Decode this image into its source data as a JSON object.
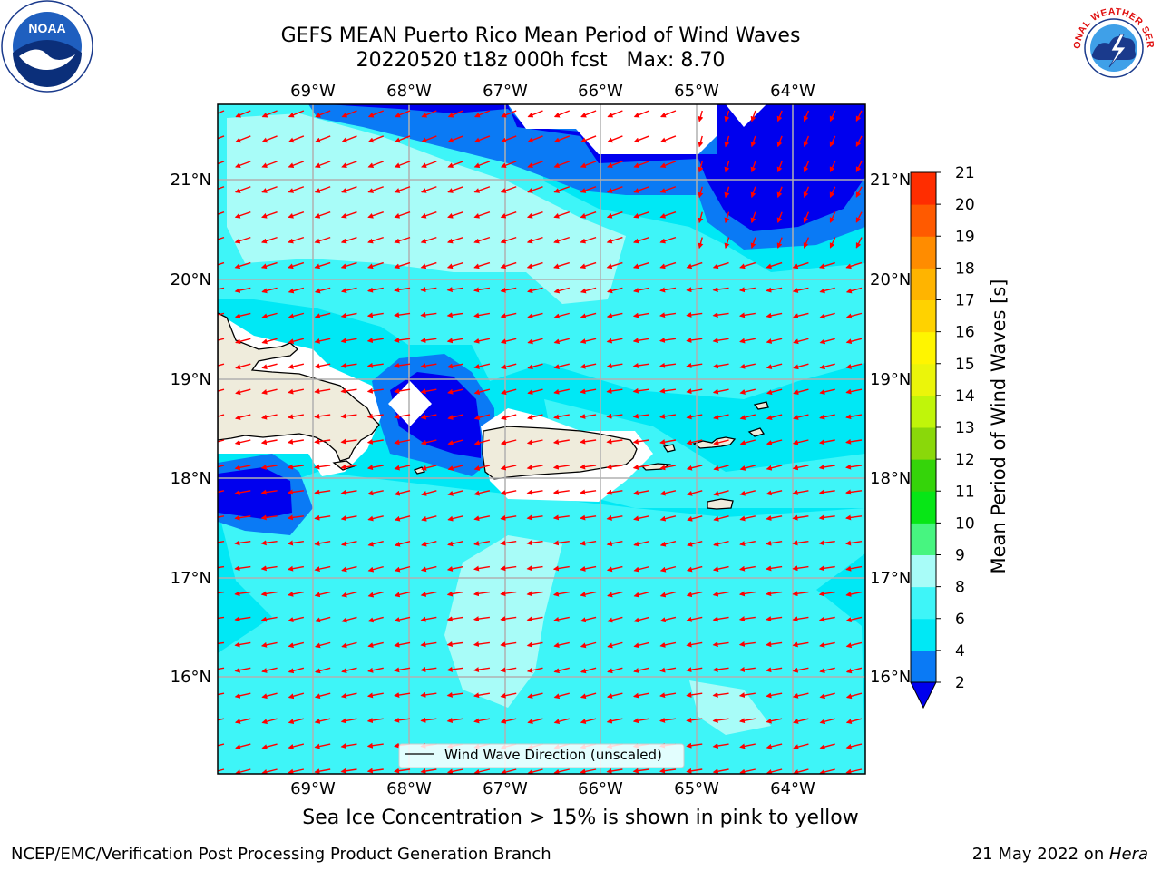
{
  "header": {
    "title_line1": "GEFS MEAN Puerto Rico Mean Period of Wind Waves",
    "title_line2": "20220520 t18z 000h fcst   Max: 8.70"
  },
  "map": {
    "lon_ticks": [
      "69°W",
      "68°W",
      "67°W",
      "66°W",
      "65°W",
      "64°W"
    ],
    "lat_ticks": [
      "21°N",
      "20°N",
      "19°N",
      "18°N",
      "17°N",
      "16°N"
    ],
    "legend_label": "Wind Wave Direction (unscaled)",
    "arrow_color": "#ff0000",
    "land_color": "#efecdc"
  },
  "colorbar": {
    "label": "Mean Period of Wind Waves [s]",
    "levels": [
      2,
      4,
      6,
      8,
      9,
      10,
      11,
      12,
      13,
      14,
      15,
      16,
      17,
      18,
      19,
      20,
      21
    ],
    "tick_labels": [
      "2",
      "4",
      "6",
      "8",
      "9",
      "10",
      "11",
      "12",
      "13",
      "14",
      "15",
      "16",
      "17",
      "18",
      "19",
      "20",
      "21"
    ],
    "colors": [
      "#0a7af5",
      "#00e8f5",
      "#3ef5f8",
      "#a8fcf8",
      "#47f580",
      "#07e616",
      "#35d40a",
      "#8ad80a",
      "#c0f50a",
      "#ebf50a",
      "#fff500",
      "#ffd200",
      "#ffb400",
      "#ff8c00",
      "#ff5a00",
      "#ff2d00",
      "#ff0000"
    ],
    "under_color": "#0000ee"
  },
  "caption": "Sea Ice Concentration > 15% is shown in pink to yellow",
  "footer": {
    "left": "NCEP/EMC/Verification Post Processing Product Generation Branch",
    "right_prefix": "21 May 2022 on ",
    "right_host": "Hera"
  },
  "logos": {
    "noaa_text": "NOAA",
    "nws_text": "NATIONAL WEATHER SERVICE"
  }
}
